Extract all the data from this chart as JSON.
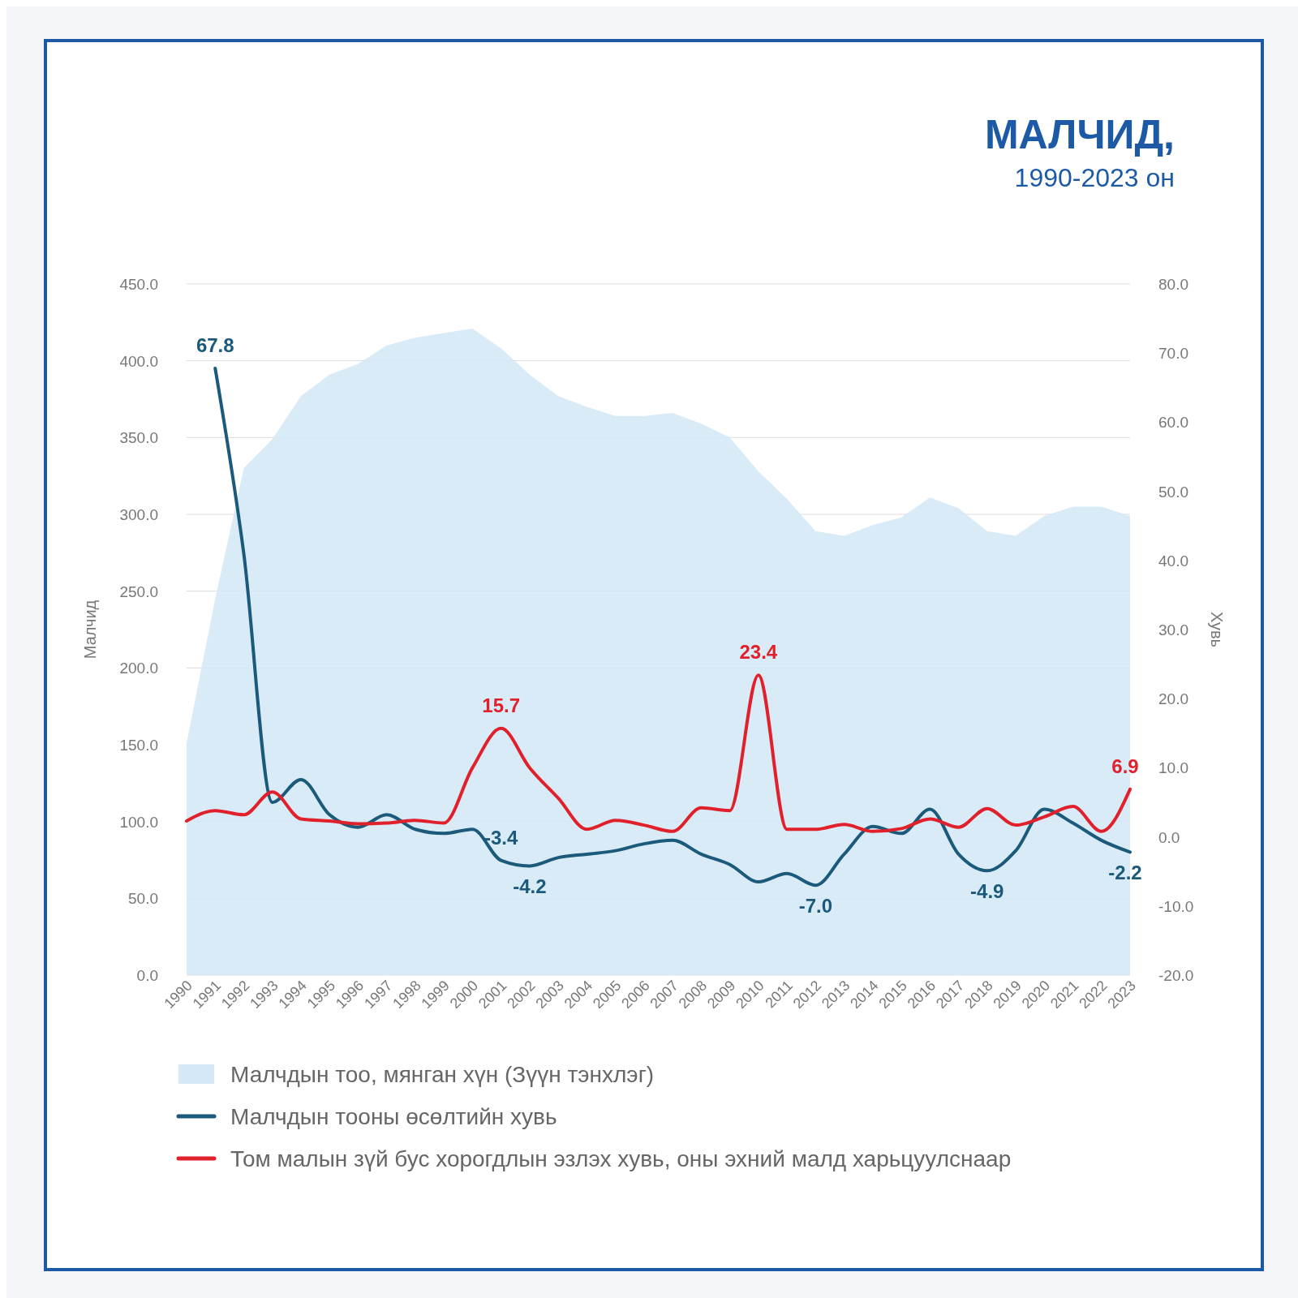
{
  "chart_data": {
    "type": "line",
    "title": "МАЛЧИД,",
    "subtitle": "1990-2023 он",
    "ylabel": "Малчид",
    "y2label": "Хувь",
    "categories": [
      "1990",
      "1991",
      "1992",
      "1993",
      "1994",
      "1995",
      "1996",
      "1997",
      "1998",
      "1999",
      "2000",
      "2001",
      "2002",
      "2003",
      "2004",
      "2005",
      "2006",
      "2007",
      "2008",
      "2009",
      "2010",
      "2011",
      "2012",
      "2013",
      "2014",
      "2015",
      "2016",
      "2017",
      "2018",
      "2019",
      "2020",
      "2021",
      "2022",
      "2023"
    ],
    "series": [
      {
        "name": "Малчдын тоо, мянган хүн (Зүүн тэнхлэг)",
        "type": "area",
        "color": "#d4e8f7",
        "values": [
          151,
          245,
          330,
          349,
          377,
          391,
          398,
          410,
          415,
          418,
          421,
          408,
          391,
          377,
          370,
          364,
          364,
          366,
          359,
          350,
          328,
          310,
          289,
          286,
          293,
          298,
          311,
          304,
          289,
          286,
          299,
          305,
          305,
          299
        ]
      },
      {
        "name": "Малчдын тооны өсөлтийн хувь",
        "axis": "y2",
        "color": "#1b5a7a",
        "values": [
          null,
          67.8,
          41,
          5,
          8.3,
          3.2,
          1.4,
          3.2,
          1.1,
          0.5,
          1.1,
          -3.4,
          -4.2,
          -3,
          -2.5,
          -2,
          -1,
          -0.5,
          -2.5,
          -4,
          -6.5,
          -5.3,
          -7.0,
          -2.5,
          1.5,
          0.5,
          4,
          -2.5,
          -4.9,
          -2,
          4,
          2,
          -0.5,
          -2.2
        ],
        "value_labels": [
          null,
          "67.8",
          null,
          null,
          null,
          null,
          null,
          null,
          null,
          null,
          null,
          "-3.4",
          "-4.2",
          null,
          null,
          null,
          null,
          null,
          null,
          null,
          null,
          null,
          "-7.0",
          null,
          null,
          null,
          null,
          null,
          "-4.9",
          null,
          null,
          null,
          null,
          "-2.2"
        ]
      },
      {
        "name": "Том малын зүй бус хорогдлын эзлэх хувь, оны эхний малд харьцуулснаар",
        "axis": "y2",
        "color": "#e0202a",
        "values": [
          2.3,
          3.8,
          3.2,
          6.5,
          2.6,
          2.3,
          1.9,
          2,
          2.4,
          2,
          10,
          15.7,
          10,
          5.6,
          1.1,
          2.4,
          1.7,
          0.8,
          4.2,
          3.8,
          23.4,
          1.1,
          1.1,
          1.8,
          0.8,
          1.2,
          2.6,
          1.4,
          4.1,
          1.7,
          2.9,
          4.4,
          0.8,
          6.9
        ],
        "value_labels": [
          null,
          null,
          null,
          null,
          null,
          null,
          null,
          null,
          null,
          null,
          null,
          "15.7",
          null,
          null,
          null,
          null,
          null,
          null,
          null,
          null,
          "23.4",
          null,
          null,
          null,
          null,
          null,
          null,
          null,
          null,
          null,
          null,
          null,
          null,
          "6.9"
        ]
      }
    ],
    "ylim": [
      0,
      450
    ],
    "yticks": [
      {
        "value": 0,
        "label": "0.0"
      },
      {
        "value": 50,
        "label": "50.0"
      },
      {
        "value": 100,
        "label": "100.0"
      },
      {
        "value": 150,
        "label": "150.0"
      },
      {
        "value": 200,
        "label": "200.0"
      },
      {
        "value": 250,
        "label": "250.0"
      },
      {
        "value": 300,
        "label": "300.0"
      },
      {
        "value": 350,
        "label": "350.0"
      },
      {
        "value": 400,
        "label": "400.0"
      },
      {
        "value": 450,
        "label": "450.0"
      }
    ],
    "y2lim": [
      -20,
      80
    ],
    "y2ticks": [
      {
        "value": -20,
        "label": "-20.0"
      },
      {
        "value": -10,
        "label": "-10.0"
      },
      {
        "value": 0,
        "label": "0.0"
      },
      {
        "value": 10,
        "label": "10.0"
      },
      {
        "value": 20,
        "label": "20.0"
      },
      {
        "value": 30,
        "label": "30.0"
      },
      {
        "value": 40,
        "label": "40.0"
      },
      {
        "value": 50,
        "label": "50.0"
      },
      {
        "value": 60,
        "label": "60.0"
      },
      {
        "value": 70,
        "label": "70.0"
      },
      {
        "value": 80,
        "label": "80.0"
      }
    ],
    "grid": "y",
    "legend": "bottom",
    "marker": "none",
    "line_style": "solid"
  }
}
